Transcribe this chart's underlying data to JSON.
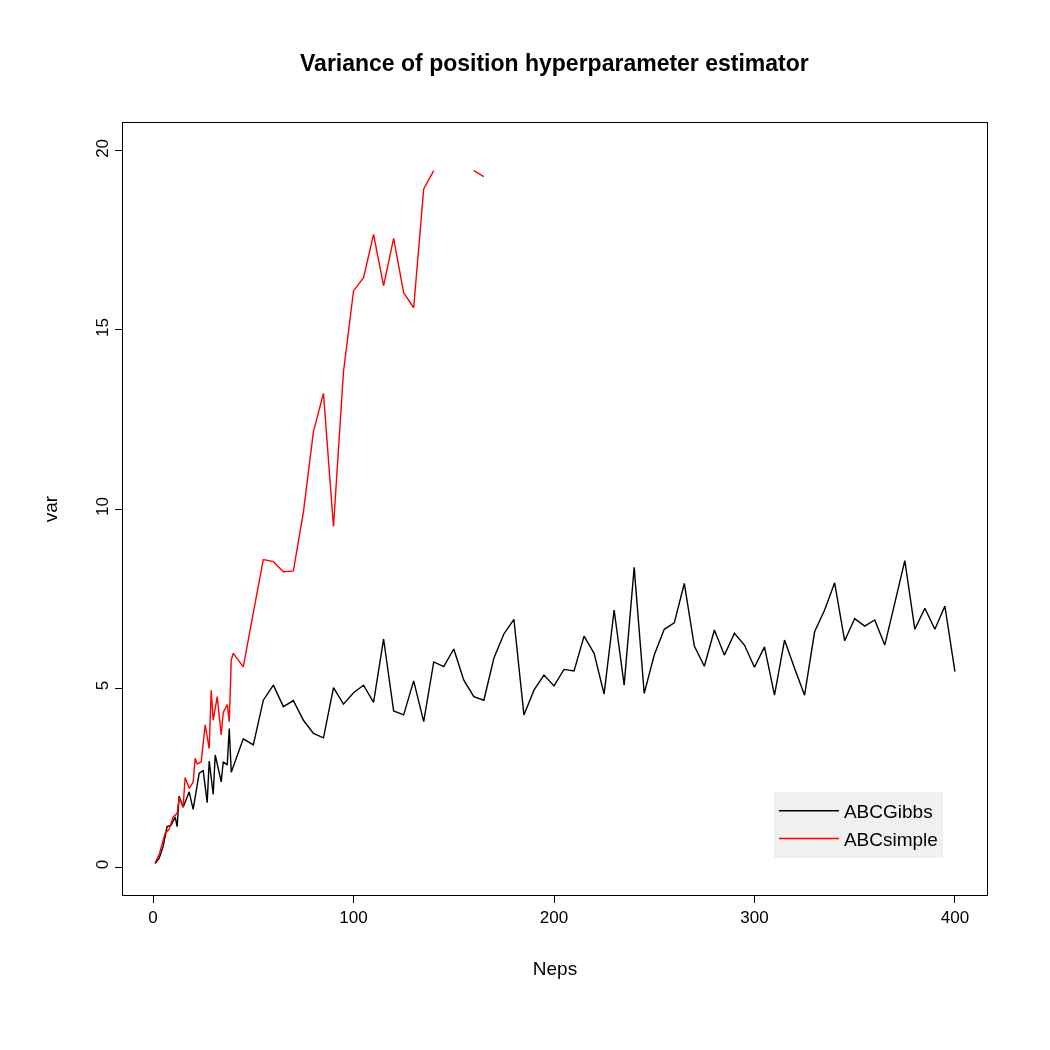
{
  "chart_data": {
    "type": "line",
    "title": "Variance of position hyperparameter estimator",
    "xlabel": "Neps",
    "ylabel": "var",
    "xlim": [
      -15,
      416
    ],
    "xticks": [
      0,
      100,
      200,
      300,
      400
    ],
    "ylim": [
      -0.78,
      20.78
    ],
    "yticks": [
      0,
      5,
      10,
      15,
      20
    ],
    "grid": false,
    "legend": "bottom right",
    "line_style": "solid",
    "marker": "none",
    "series": [
      {
        "name": "ABCGibbs",
        "color": "#000000",
        "x": [
          1,
          3,
          5,
          7,
          9,
          11,
          12,
          13,
          15,
          17,
          18,
          20,
          23,
          25,
          27,
          28,
          30,
          31,
          34,
          35,
          37,
          38,
          39,
          45,
          50,
          55,
          60,
          65,
          70,
          75,
          80,
          85,
          90,
          95,
          100,
          105,
          110,
          115,
          120,
          125,
          130,
          135,
          140,
          145,
          150,
          155,
          160,
          165,
          170,
          175,
          180,
          185,
          190,
          195,
          200,
          205,
          210,
          215,
          220,
          225,
          230,
          235,
          240,
          245,
          250,
          255,
          260,
          265,
          270,
          275,
          280,
          285,
          290,
          295,
          300,
          305,
          310,
          315,
          320,
          325,
          330,
          335,
          340,
          345,
          350,
          355,
          360,
          365,
          370,
          375,
          380,
          385,
          390,
          395,
          400
        ],
        "values": [
          0.1,
          0.24,
          0.57,
          1.13,
          1.17,
          1.4,
          1.13,
          1.98,
          1.67,
          1.96,
          2.1,
          1.61,
          2.62,
          2.69,
          1.8,
          2.96,
          2.03,
          3.13,
          2.38,
          2.94,
          2.85,
          3.87,
          2.65,
          3.58,
          3.41,
          4.66,
          5.08,
          4.48,
          4.65,
          4.1,
          3.73,
          3.61,
          5.01,
          4.55,
          4.87,
          5.08,
          4.6,
          6.37,
          4.36,
          4.25,
          5.2,
          4.06,
          5.73,
          5.6,
          6.09,
          5.22,
          4.76,
          4.66,
          5.83,
          6.51,
          6.92,
          4.25,
          4.94,
          5.36,
          5.06,
          5.52,
          5.48,
          6.45,
          5.97,
          4.83,
          7.18,
          5.08,
          8.37,
          4.85,
          5.92,
          6.64,
          6.82,
          7.92,
          6.17,
          5.61,
          6.62,
          5.92,
          6.53,
          6.2,
          5.58,
          6.15,
          4.8,
          6.34,
          5.55,
          4.8,
          6.57,
          7.18,
          7.94,
          6.32,
          6.94,
          6.73,
          6.9,
          6.2,
          7.37,
          8.56,
          6.64,
          7.23,
          6.64,
          7.29,
          5.46
        ]
      },
      {
        "name": "ABCsimple",
        "color": "#ff0000",
        "x": [
          1,
          3,
          6,
          8,
          10,
          12,
          13,
          15,
          16,
          18,
          20,
          21,
          22,
          24,
          26,
          28,
          29,
          30,
          32,
          34,
          35,
          37,
          38,
          39,
          40,
          45,
          50,
          55,
          60,
          65,
          70,
          75,
          80,
          85,
          90,
          95,
          100,
          105,
          110,
          115,
          120,
          125,
          130,
          135,
          140,
          145,
          150,
          155,
          160,
          165
        ],
        "values": [
          0.12,
          0.34,
          0.94,
          1.05,
          1.4,
          1.5,
          1.94,
          1.68,
          2.5,
          2.2,
          2.37,
          3.04,
          2.88,
          2.94,
          3.97,
          3.31,
          4.94,
          4.1,
          4.76,
          3.69,
          4.31,
          4.54,
          4.06,
          5.78,
          5.97,
          5.59,
          7.1,
          8.59,
          8.53,
          8.25,
          8.27,
          9.92,
          12.16,
          13.23,
          9.51,
          13.84,
          16.09,
          16.46,
          17.67,
          16.23,
          17.56,
          16.04,
          15.62,
          18.94,
          19.45,
          null,
          null,
          null,
          19.45,
          19.28
        ]
      }
    ]
  }
}
